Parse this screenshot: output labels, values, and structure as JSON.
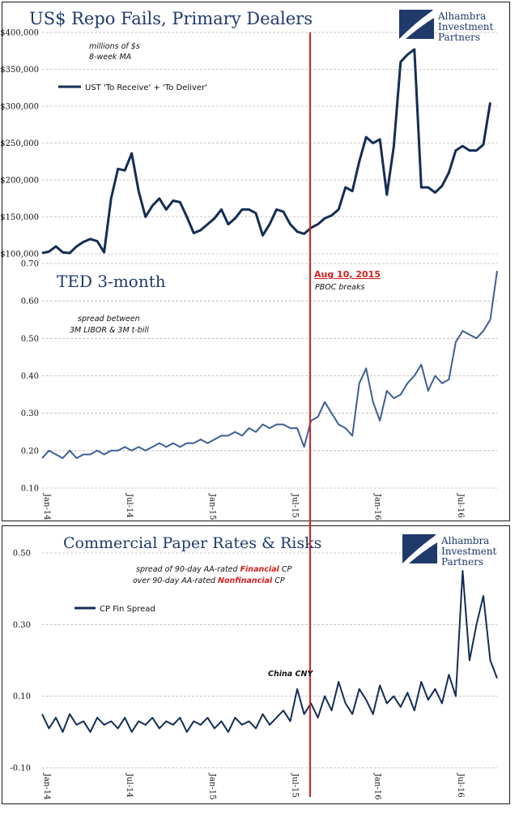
{
  "colors": {
    "series": "#142d55",
    "ted": "#3e5f94",
    "marker": "#d62020",
    "title": "#1f3a6b",
    "grid": "#b8b8b8"
  },
  "logo": {
    "line1": "Alhambra",
    "line2": "Investment",
    "line3": "Partners",
    "icon": "alhambra-logo-icon"
  },
  "marker": {
    "date": "Aug 10, 2015",
    "label": "PBOC breaks",
    "label2": "China CNY"
  },
  "x_ticks": [
    "Jan-14",
    "Jul-14",
    "Jan-15",
    "Jul-15",
    "Jan-16",
    "Jul-16"
  ],
  "chart_data": [
    {
      "type": "line",
      "title": "US$ Repo Fails, Primary Dealers",
      "note1": "millions of $s",
      "note2": "8-week MA",
      "legend": "UST 'To Receive' + 'To Deliver'",
      "ylim": [
        100000,
        400000
      ],
      "y_ticks": [
        "$400,000",
        "$350,000",
        "$300,000",
        "$250,000",
        "$200,000",
        "$150,000",
        "$100,000"
      ],
      "xlim": [
        0,
        33
      ],
      "series": [
        {
          "name": "UST 'To Receive' + 'To Deliver'",
          "x": [
            0,
            0.5,
            1,
            1.5,
            2,
            2.5,
            3,
            3.5,
            4,
            4.5,
            5,
            5.5,
            6,
            6.5,
            7,
            7.5,
            8,
            8.5,
            9,
            9.5,
            10,
            10.5,
            11,
            11.5,
            12,
            12.5,
            13,
            13.5,
            14,
            14.5,
            15,
            15.5,
            16,
            16.5,
            17,
            17.5,
            18,
            18.5,
            19,
            19.5,
            20,
            20.5,
            21,
            21.5,
            22,
            22.5,
            23,
            23.5,
            24,
            24.5,
            25,
            25.5,
            26,
            26.5,
            27,
            27.5,
            28,
            28.5,
            29,
            29.5,
            30,
            30.5,
            31,
            31.5,
            32,
            32.5
          ],
          "values": [
            101000,
            103000,
            110000,
            102000,
            101000,
            110000,
            116000,
            120000,
            117000,
            102000,
            175000,
            215000,
            213000,
            236000,
            185000,
            150000,
            165000,
            175000,
            160000,
            172000,
            170000,
            150000,
            128000,
            132000,
            140000,
            148000,
            160000,
            140000,
            148000,
            160000,
            160000,
            155000,
            125000,
            140000,
            160000,
            157000,
            140000,
            130000,
            127000,
            135000,
            140000,
            148000,
            152000,
            160000,
            190000,
            185000,
            225000,
            258000,
            250000,
            255000,
            180000,
            245000,
            360000,
            370000,
            377000,
            190000,
            190000,
            183000,
            192000,
            210000,
            240000,
            246000,
            240000,
            240000,
            248000,
            305000
          ]
        }
      ]
    },
    {
      "type": "line",
      "title": "TED 3-month",
      "note1": "spread between",
      "note2": "3M LIBOR & 3M t-bill",
      "ylim": [
        0.1,
        0.7
      ],
      "y_ticks": [
        "0.70",
        "0.60",
        "0.50",
        "0.40",
        "0.30",
        "0.20",
        "0.10"
      ],
      "xlim": [
        0,
        33
      ],
      "series": [
        {
          "name": "TED",
          "x": [
            0,
            0.5,
            1,
            1.5,
            2,
            2.5,
            3,
            3.5,
            4,
            4.5,
            5,
            5.5,
            6,
            6.5,
            7,
            7.5,
            8,
            8.5,
            9,
            9.5,
            10,
            10.5,
            11,
            11.5,
            12,
            12.5,
            13,
            13.5,
            14,
            14.5,
            15,
            15.5,
            16,
            16.5,
            17,
            17.5,
            18,
            18.5,
            19,
            19.5,
            20,
            20.5,
            21,
            21.5,
            22,
            22.5,
            23,
            23.5,
            24,
            24.5,
            25,
            25.5,
            26,
            26.5,
            27,
            27.5,
            28,
            28.5,
            29,
            29.5,
            30,
            30.5,
            31,
            31.5,
            32,
            32.5,
            33
          ],
          "values": [
            0.18,
            0.2,
            0.19,
            0.18,
            0.2,
            0.18,
            0.19,
            0.19,
            0.2,
            0.19,
            0.2,
            0.2,
            0.21,
            0.2,
            0.21,
            0.2,
            0.21,
            0.22,
            0.21,
            0.22,
            0.21,
            0.22,
            0.22,
            0.23,
            0.22,
            0.23,
            0.24,
            0.24,
            0.25,
            0.24,
            0.26,
            0.25,
            0.27,
            0.26,
            0.27,
            0.27,
            0.26,
            0.26,
            0.21,
            0.28,
            0.29,
            0.33,
            0.3,
            0.27,
            0.26,
            0.24,
            0.38,
            0.42,
            0.33,
            0.28,
            0.36,
            0.34,
            0.35,
            0.38,
            0.4,
            0.43,
            0.36,
            0.4,
            0.38,
            0.39,
            0.49,
            0.52,
            0.51,
            0.5,
            0.52,
            0.55,
            0.68
          ]
        }
      ]
    },
    {
      "type": "line",
      "title": "Commercial Paper Rates & Risks",
      "note1_pre": "spread of 90-day AA-rated ",
      "note1_em": "Financial",
      "note1_post": " CP",
      "note2_pre": "over 90-day AA-rated ",
      "note2_em": "Nonfinancial",
      "note2_post": " CP",
      "legend": "CP Fin Spread",
      "ylim": [
        -0.1,
        0.5
      ],
      "y_ticks": [
        "0.50",
        "0.30",
        "0.10",
        "-0.10"
      ],
      "xlim": [
        0,
        33
      ],
      "series": [
        {
          "name": "CP Fin Spread",
          "x": [
            0,
            0.5,
            1,
            1.5,
            2,
            2.5,
            3,
            3.5,
            4,
            4.5,
            5,
            5.5,
            6,
            6.5,
            7,
            7.5,
            8,
            8.5,
            9,
            9.5,
            10,
            10.5,
            11,
            11.5,
            12,
            12.5,
            13,
            13.5,
            14,
            14.5,
            15,
            15.5,
            16,
            16.5,
            17,
            17.5,
            18,
            18.5,
            19,
            19.5,
            20,
            20.5,
            21,
            21.5,
            22,
            22.5,
            23,
            23.5,
            24,
            24.5,
            25,
            25.5,
            26,
            26.5,
            27,
            27.5,
            28,
            28.5,
            29,
            29.5,
            30,
            30.5,
            31,
            31.5,
            32,
            32.5,
            33
          ],
          "values": [
            0.05,
            0.01,
            0.04,
            0.0,
            0.05,
            0.02,
            0.03,
            0.0,
            0.04,
            0.02,
            0.03,
            0.01,
            0.04,
            0.0,
            0.03,
            0.02,
            0.04,
            0.01,
            0.03,
            0.02,
            0.04,
            0.0,
            0.03,
            0.02,
            0.04,
            0.01,
            0.03,
            0.0,
            0.04,
            0.02,
            0.03,
            0.01,
            0.05,
            0.02,
            0.04,
            0.06,
            0.03,
            0.12,
            0.05,
            0.08,
            0.04,
            0.1,
            0.06,
            0.14,
            0.08,
            0.05,
            0.12,
            0.09,
            0.05,
            0.13,
            0.08,
            0.1,
            0.07,
            0.11,
            0.06,
            0.14,
            0.09,
            0.12,
            0.08,
            0.16,
            0.1,
            0.45,
            0.2,
            0.3,
            0.38,
            0.2,
            0.15
          ]
        }
      ]
    }
  ]
}
